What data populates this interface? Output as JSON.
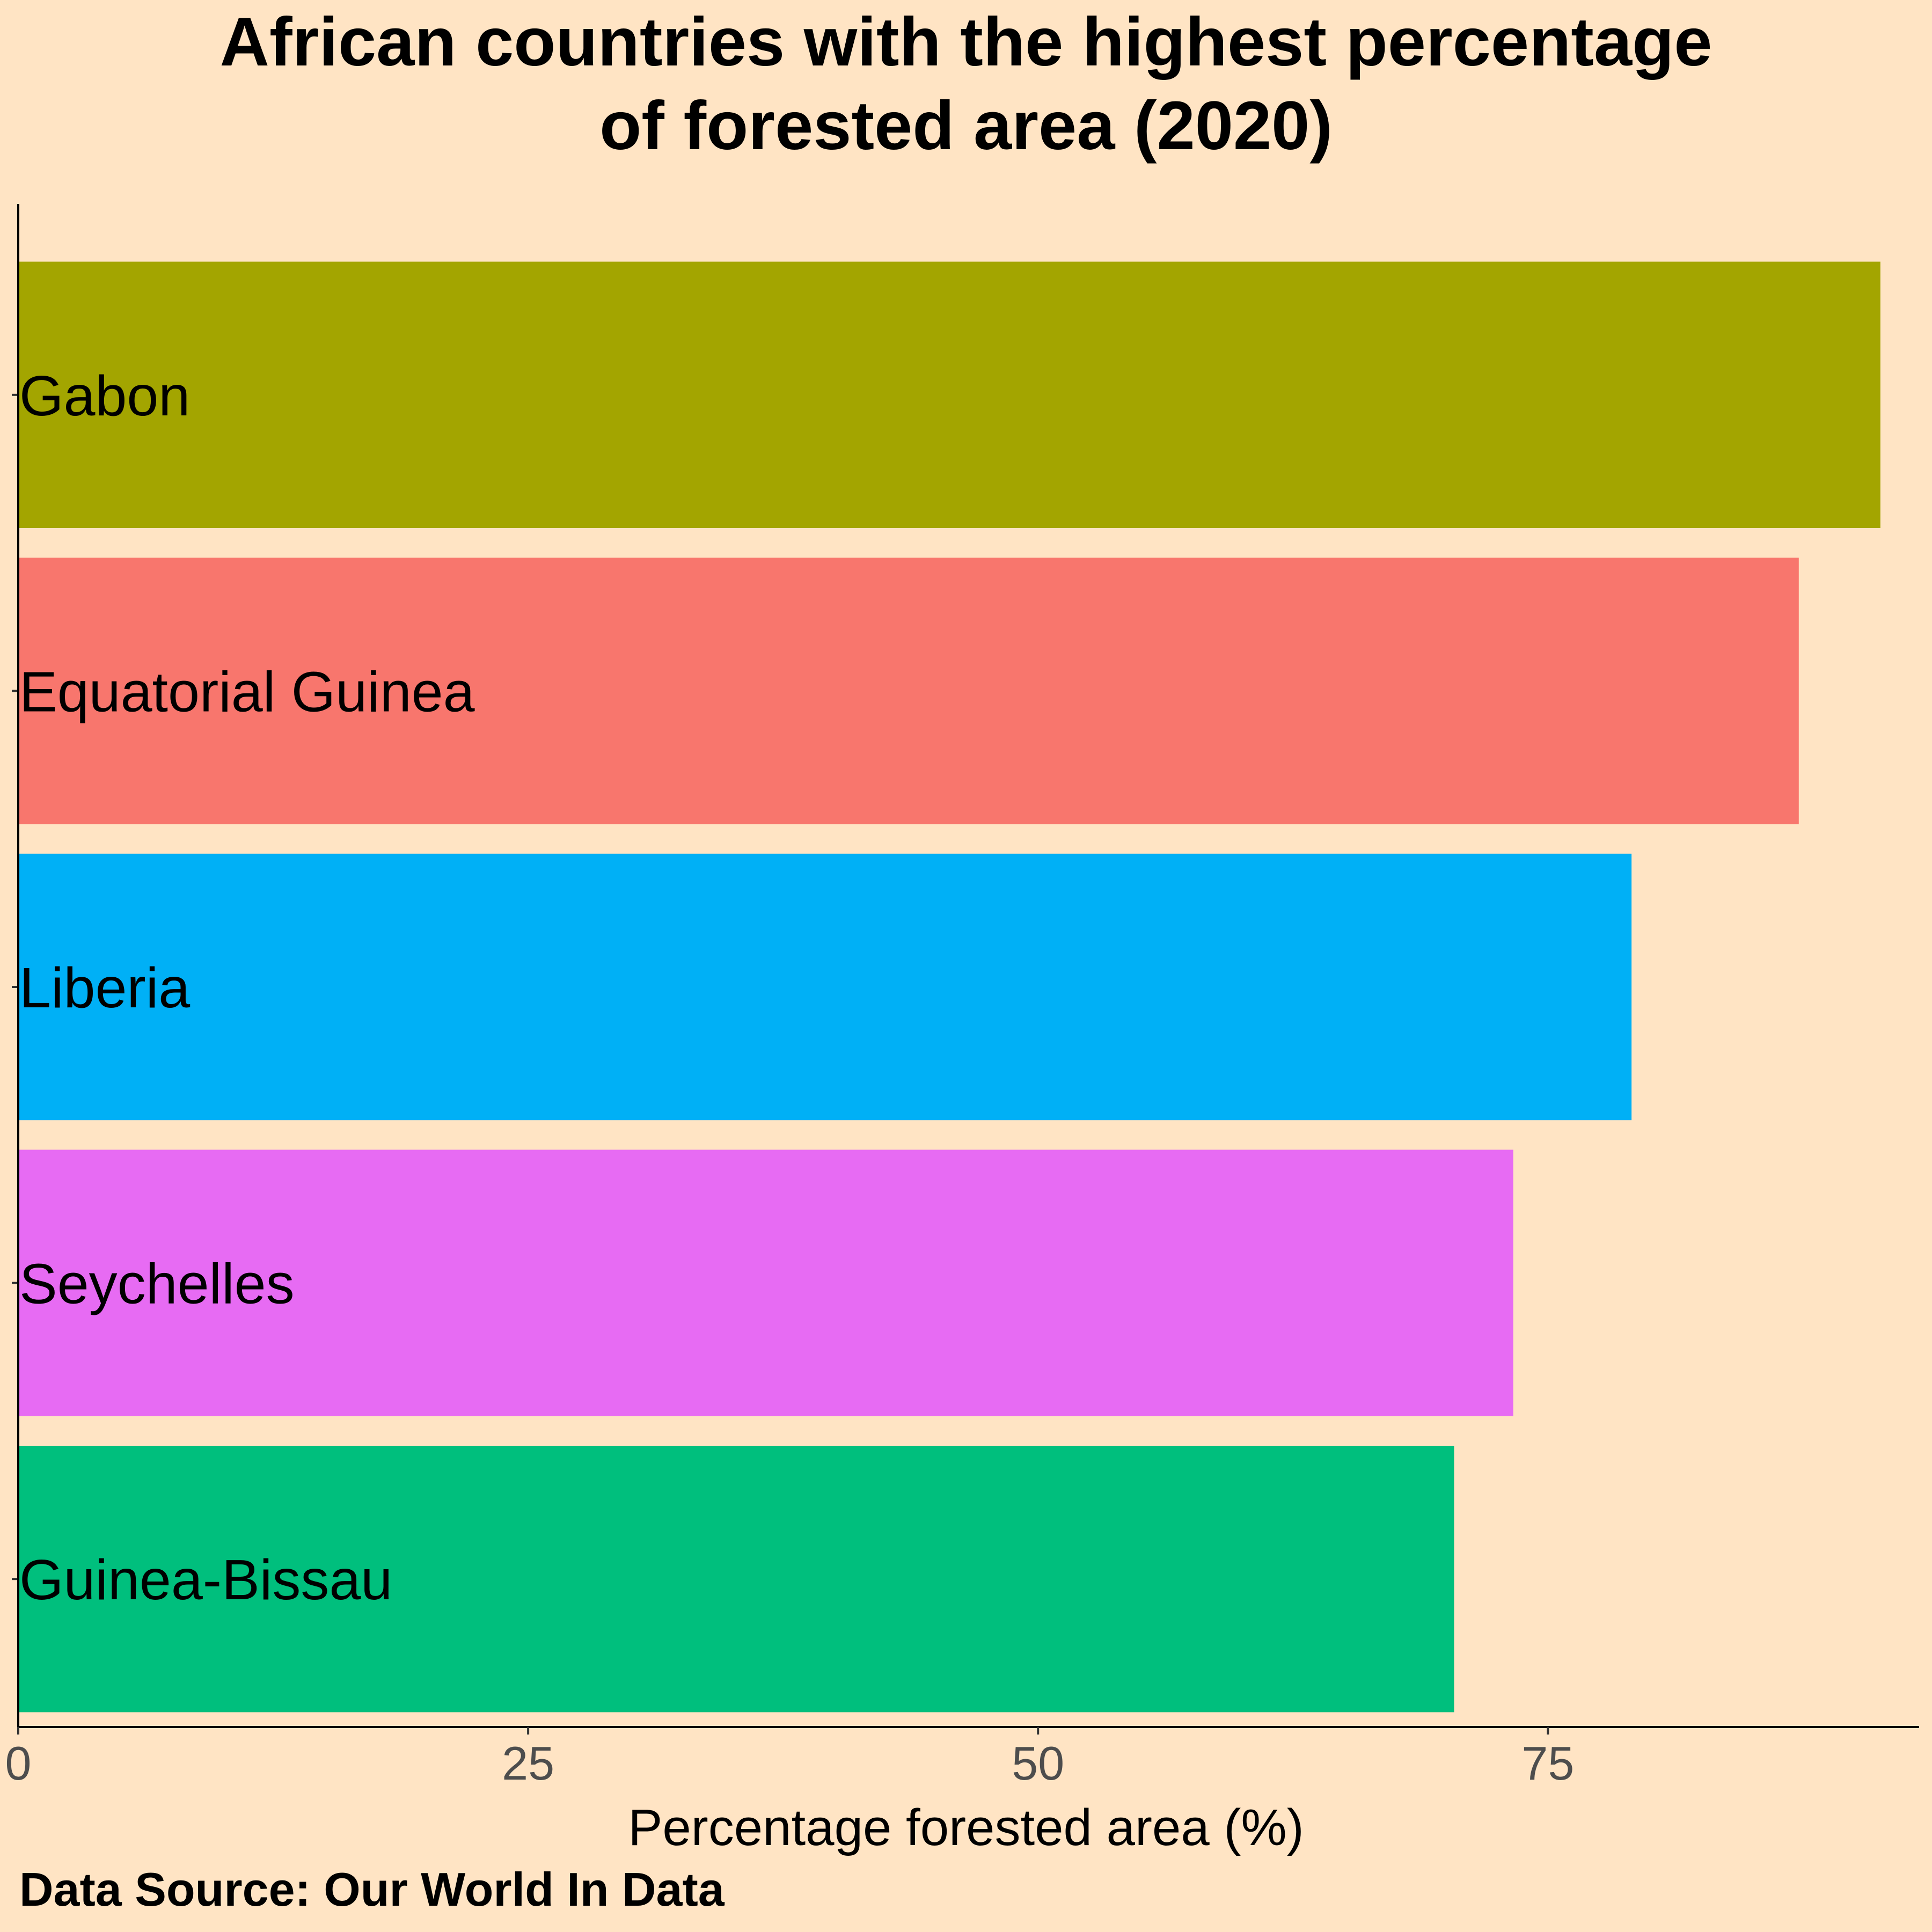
{
  "chart_data": {
    "type": "bar",
    "orientation": "horizontal",
    "title_lines": [
      "African countries with the highest percentage",
      "of forested area (2020)"
    ],
    "categories": [
      "Gabon",
      "Equatorial Guinea",
      "Liberia",
      "Seychelles",
      "Guinea-Bissau"
    ],
    "values": [
      91.3,
      87.3,
      79.1,
      73.3,
      70.4
    ],
    "colors": [
      "#a3a500",
      "#f8766d",
      "#00b0f6",
      "#e76bf3",
      "#00bf7d"
    ],
    "xlabel": "Percentage forested area (%)",
    "ylabel": "",
    "xlim": [
      0,
      93.2
    ],
    "xticks": [
      0,
      25,
      50,
      75
    ],
    "grid": false,
    "legend": "none",
    "caption": "Data Source: Our World In Data",
    "background": "#ffe4c4"
  }
}
